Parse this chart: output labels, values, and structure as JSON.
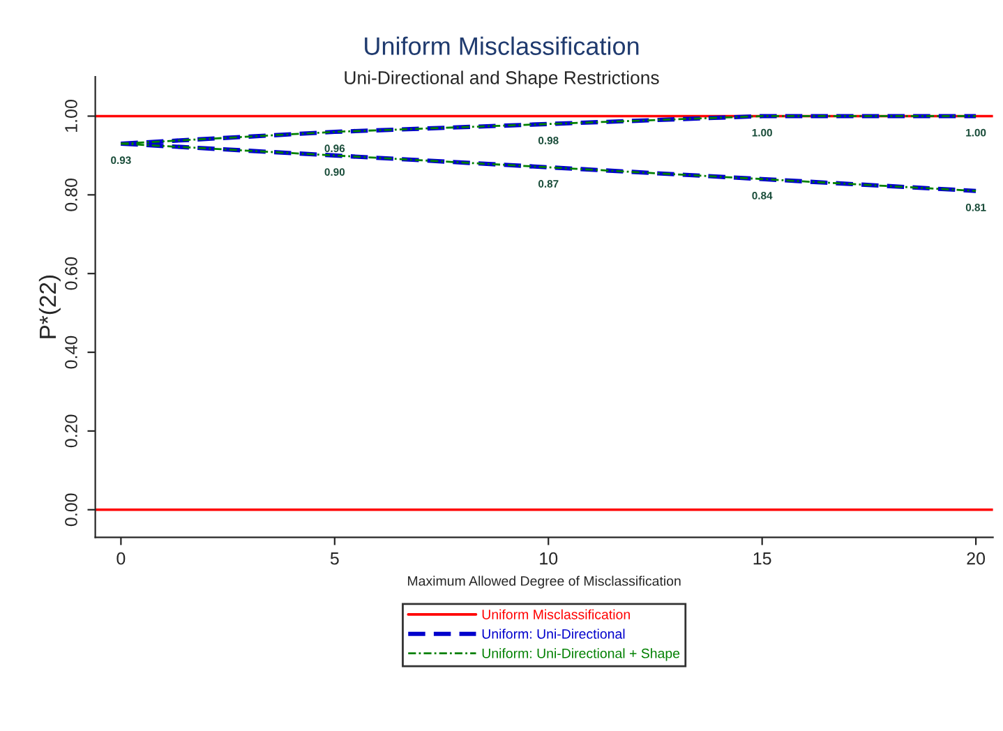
{
  "chart_data": {
    "type": "line",
    "title": "Uniform Misclassification",
    "subtitle": "Uni-Directional and Shape Restrictions",
    "xlabel": "Maximum Allowed Degree of Misclassification",
    "ylabel": "P*(22)",
    "x": [
      0,
      5,
      10,
      15,
      20
    ],
    "ref_lines": [
      {
        "axis": "y",
        "value": 1,
        "label": "Uniform Misclassification",
        "color": "#ff0000",
        "line_style": "solid"
      },
      {
        "axis": "y",
        "value": 0,
        "color": "#ff0000",
        "line_style": "solid"
      }
    ],
    "series": [
      {
        "name": "Uniform: Uni-Directional",
        "color": "#0000cc",
        "line_style": "dashed",
        "values": [
          0.93,
          0.96,
          0.98,
          1.0,
          1.0
        ]
      },
      {
        "color": "#0000cc",
        "line_style": "dashed",
        "values": [
          0.93,
          0.9,
          0.87,
          0.84,
          0.81
        ]
      },
      {
        "name": "Uniform: Uni-Directional + Shape",
        "color": "#008000",
        "line_style": "dashdot",
        "values": [
          0.93,
          0.96,
          0.98,
          1.0,
          1.0
        ],
        "value_labels": [
          "0.93",
          "0.96",
          "0.98",
          "1.00",
          "1.00"
        ]
      },
      {
        "color": "#008000",
        "line_style": "dashdot",
        "values": [
          0.93,
          0.9,
          0.87,
          0.84,
          0.81
        ],
        "value_labels": [
          null,
          "0.90",
          "0.87",
          "0.84",
          "0.81"
        ]
      }
    ],
    "xlim": [
      -0.6,
      20.4
    ],
    "xticks": [
      0,
      5,
      10,
      15,
      20
    ],
    "ylim": [
      -0.07,
      1.1
    ],
    "yticks": [
      {
        "value": 0,
        "label": "0.00"
      },
      {
        "value": 0.2,
        "label": "0.20"
      },
      {
        "value": 0.4,
        "label": "0.40"
      },
      {
        "value": 0.6,
        "label": "0.60"
      },
      {
        "value": 0.8,
        "label": "0.80"
      },
      {
        "value": 1.0,
        "label": "1.00"
      }
    ],
    "legend": "bottom",
    "grid": false
  }
}
